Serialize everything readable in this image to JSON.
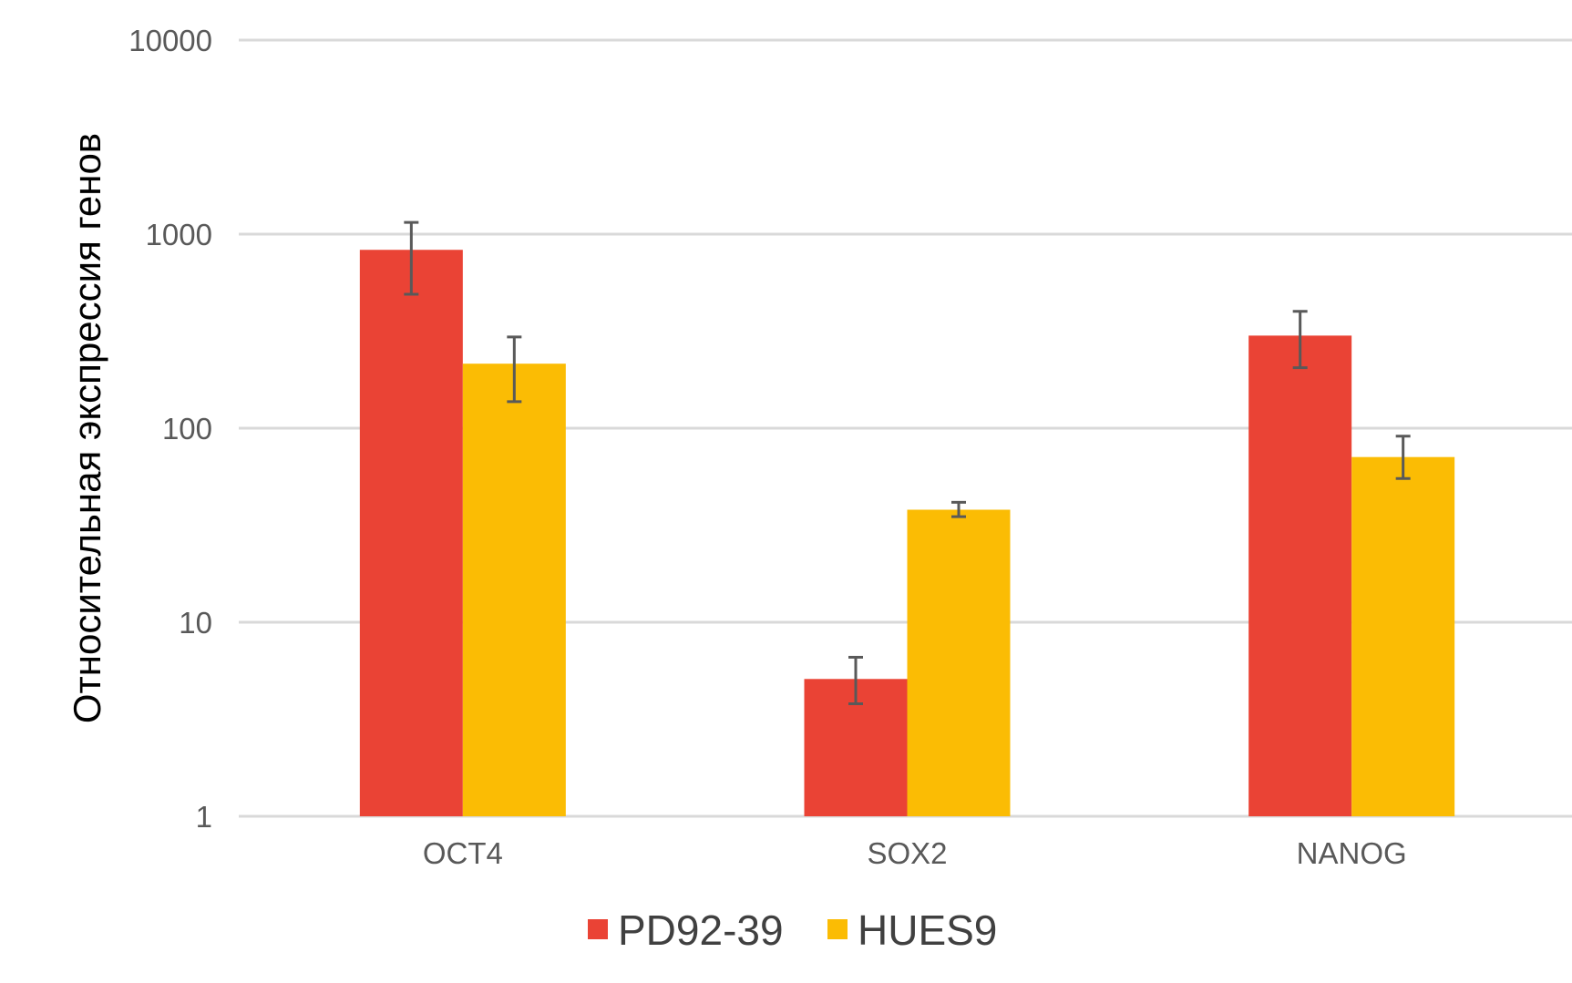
{
  "chart_data": {
    "type": "bar",
    "scale": "log10",
    "title": "",
    "xlabel": "",
    "ylabel": "Относительная экспрессия генов",
    "ylim": [
      1,
      10000
    ],
    "yticks": [
      "1",
      "10",
      "100",
      "1000",
      "10000"
    ],
    "grid": true,
    "legend_position": "bottom",
    "categories": [
      "OCT4",
      "SOX2",
      "NANOG"
    ],
    "series": [
      {
        "name": "PD92-39",
        "color": "#EA4335",
        "values": [
          830,
          5.1,
          300
        ],
        "error_low": [
          490,
          3.8,
          205
        ],
        "error_high": [
          1150,
          6.6,
          400
        ]
      },
      {
        "name": "HUES9",
        "color": "#FBBC04",
        "values": [
          215,
          38,
          71
        ],
        "error_low": [
          137,
          35,
          55
        ],
        "error_high": [
          295,
          41.5,
          91
        ]
      }
    ]
  }
}
